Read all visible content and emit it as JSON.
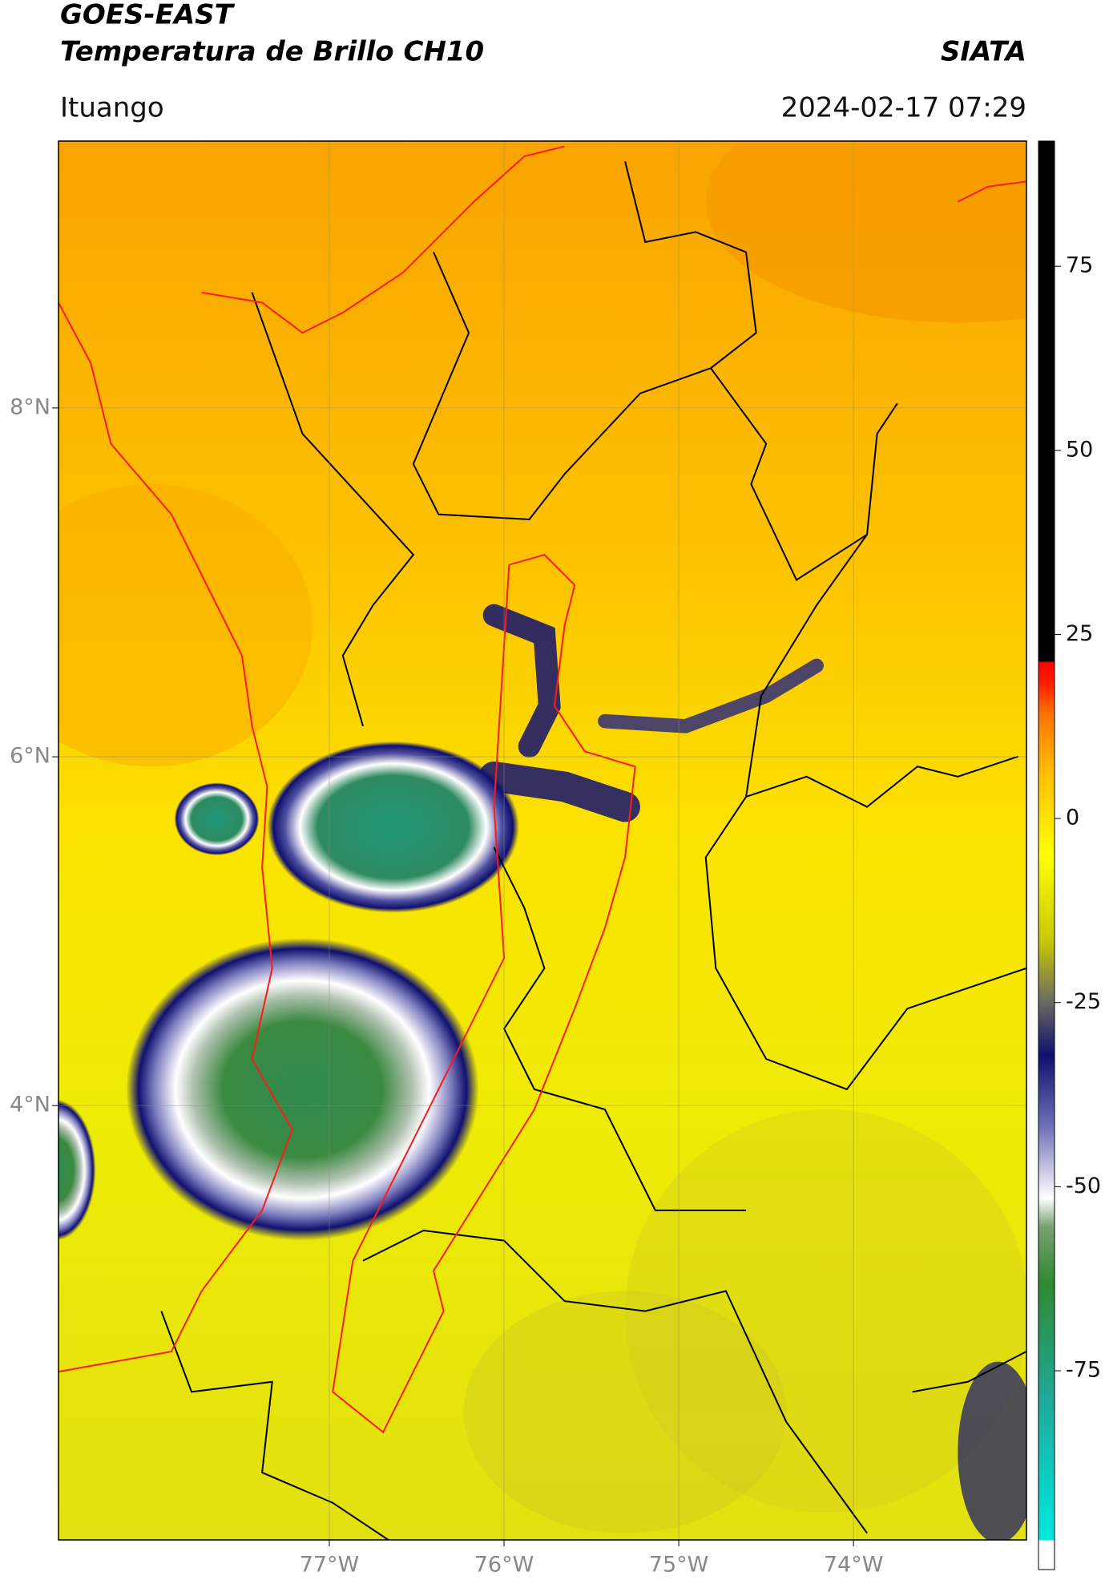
{
  "chart_data": {
    "type": "map",
    "title": "GOES-EAST",
    "subtitle": "Temperatura de Brillo CH10",
    "source": "SIATA",
    "location": "Ituango",
    "datetime": "2024-02-17 07:29",
    "xlim": [
      -78.55,
      -73.01
    ],
    "ylim": [
      1.51,
      9.53
    ],
    "xticks": [
      {
        "value": -77,
        "label": "77°W"
      },
      {
        "value": -76,
        "label": "76°W"
      },
      {
        "value": -75,
        "label": "75°W"
      },
      {
        "value": -74,
        "label": "74°W"
      }
    ],
    "yticks": [
      {
        "value": 8,
        "label": "8°N"
      },
      {
        "value": 6,
        "label": "6°N"
      },
      {
        "value": 4,
        "label": "4°N"
      }
    ],
    "grid": true,
    "colorbar": {
      "lim": [
        -102,
        92
      ],
      "ticks": [
        75,
        50,
        25,
        0,
        -25,
        -50,
        -75
      ]
    }
  }
}
